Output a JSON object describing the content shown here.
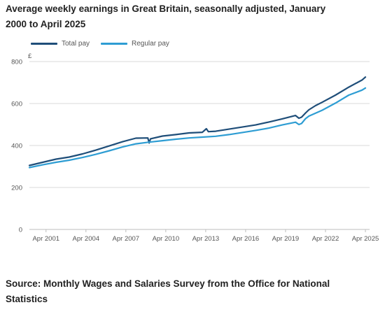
{
  "title": "Average weekly earnings in Great Britain, seasonally adjusted, January 2000 to April 2025",
  "source": "Source: Monthly Wages and Salaries Survey from the Office for National Statistics",
  "chart_data": {
    "type": "line",
    "ylabel": "£",
    "ylim": [
      0,
      800
    ],
    "yticks": [
      0,
      200,
      400,
      600,
      800
    ],
    "xlim": [
      2000.0,
      2025.25
    ],
    "xticks": [
      {
        "label": "Apr 2001",
        "value": 2001.25
      },
      {
        "label": "Apr 2004",
        "value": 2004.25
      },
      {
        "label": "Apr 2007",
        "value": 2007.25
      },
      {
        "label": "Apr 2010",
        "value": 2010.25
      },
      {
        "label": "Apr 2013",
        "value": 2013.25
      },
      {
        "label": "Apr 2016",
        "value": 2016.25
      },
      {
        "label": "Apr 2019",
        "value": 2019.25
      },
      {
        "label": "Apr 2022",
        "value": 2022.25
      },
      {
        "label": "Apr 2025",
        "value": 2025.25
      }
    ],
    "grid": true,
    "legend_position": "top-left",
    "series": [
      {
        "name": "Total pay",
        "color": "#1f4e79",
        "x": [
          2000.0,
          2001.0,
          2002.0,
          2003.0,
          2004.0,
          2005.0,
          2006.0,
          2007.0,
          2008.0,
          2008.9,
          2009.0,
          2009.1,
          2010.0,
          2011.0,
          2012.0,
          2013.0,
          2013.3,
          2013.45,
          2014.0,
          2015.0,
          2016.0,
          2017.0,
          2018.0,
          2019.0,
          2020.0,
          2020.25,
          2020.45,
          2020.75,
          2021.0,
          2021.5,
          2022.0,
          2023.0,
          2024.0,
          2025.0,
          2025.25
        ],
        "y": [
          305,
          320,
          335,
          345,
          360,
          378,
          398,
          418,
          435,
          436,
          412,
          432,
          445,
          452,
          460,
          463,
          480,
          466,
          468,
          478,
          488,
          498,
          512,
          527,
          543,
          530,
          535,
          555,
          570,
          590,
          606,
          640,
          678,
          712,
          726
        ]
      },
      {
        "name": "Regular pay",
        "color": "#2e9dd3",
        "x": [
          2000.0,
          2001.0,
          2002.0,
          2003.0,
          2004.0,
          2005.0,
          2006.0,
          2007.0,
          2008.0,
          2009.0,
          2010.0,
          2011.0,
          2012.0,
          2013.0,
          2014.0,
          2015.0,
          2016.0,
          2017.0,
          2018.0,
          2019.0,
          2020.0,
          2020.25,
          2020.45,
          2020.75,
          2021.0,
          2022.0,
          2023.0,
          2024.0,
          2025.0,
          2025.25
        ],
        "y": [
          295,
          308,
          320,
          330,
          343,
          358,
          375,
          393,
          408,
          416,
          423,
          430,
          436,
          440,
          444,
          452,
          462,
          472,
          483,
          498,
          511,
          500,
          505,
          528,
          540,
          568,
          602,
          640,
          664,
          674
        ]
      }
    ]
  }
}
